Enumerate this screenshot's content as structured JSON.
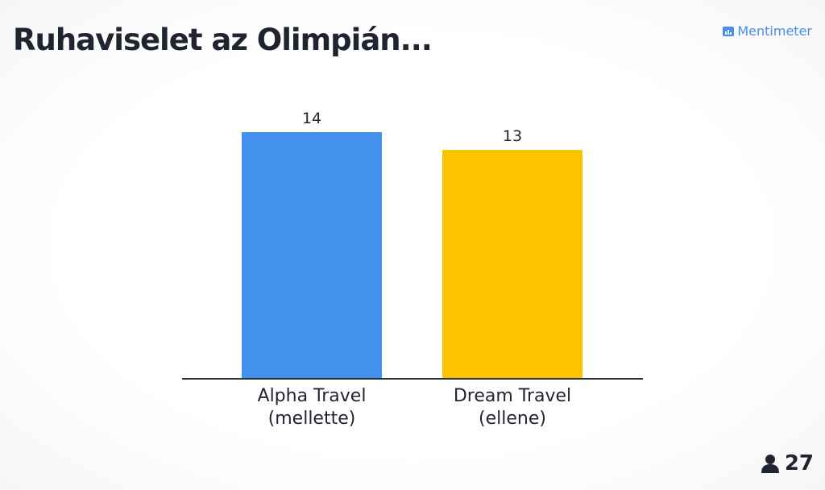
{
  "logo": "Mentimeter",
  "participants": "27",
  "chart_data": {
    "type": "bar",
    "title": "Ruhaviselet az Olimpián...",
    "categories": [
      "Alpha Travel (mellette)",
      "Dream Travel (ellene)"
    ],
    "series": [
      {
        "name": null,
        "values": [
          14,
          13
        ],
        "colors": [
          "#4391ed",
          "#fcc400"
        ]
      }
    ]
  }
}
